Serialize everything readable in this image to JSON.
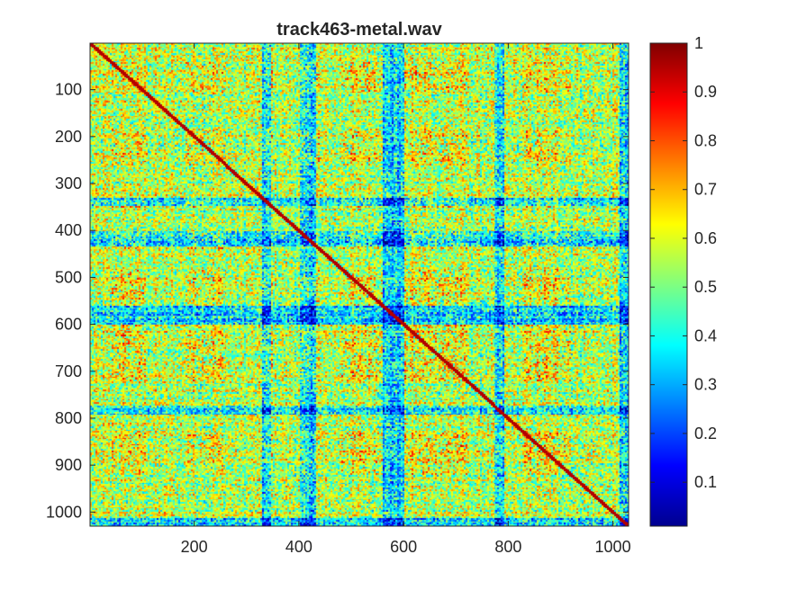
{
  "chart_data": {
    "type": "heatmap",
    "title": "track463-metal.wav",
    "xlabel": "",
    "ylabel": "",
    "xlim": [
      1,
      1030
    ],
    "ylim": [
      1,
      1030
    ],
    "y_reversed": true,
    "x_ticks": [
      200,
      400,
      600,
      800,
      1000
    ],
    "x_tick_labels": [
      "200",
      "400",
      "600",
      "800",
      "1000"
    ],
    "y_ticks": [
      100,
      200,
      300,
      400,
      500,
      600,
      700,
      800,
      900,
      1000
    ],
    "y_tick_labels": [
      "100",
      "200",
      "300",
      "400",
      "500",
      "600",
      "700",
      "800",
      "900",
      "1000"
    ],
    "colormap": "jet",
    "clim": [
      0.01,
      1
    ],
    "colorbar": {
      "ticks": [
        0.1,
        0.2,
        0.3,
        0.4,
        0.5,
        0.6,
        0.7,
        0.8,
        0.9,
        1
      ],
      "tick_labels": [
        "0.1",
        "0.2",
        "0.3",
        "0.4",
        "0.5",
        "0.6",
        "0.7",
        "0.8",
        "0.9",
        "1"
      ]
    },
    "matrix_description": "self-similarity matrix, symmetric, diagonal = 1",
    "low_similarity_bands": [
      [
        330,
        345
      ],
      [
        400,
        430
      ],
      [
        560,
        600
      ],
      [
        770,
        790
      ],
      [
        1010,
        1030
      ]
    ],
    "high_similarity_blocks": [
      [
        40,
        110
      ],
      [
        180,
        260
      ],
      [
        330,
        350
      ],
      [
        400,
        440
      ],
      [
        480,
        560
      ],
      [
        600,
        720
      ],
      [
        830,
        920
      ]
    ]
  }
}
